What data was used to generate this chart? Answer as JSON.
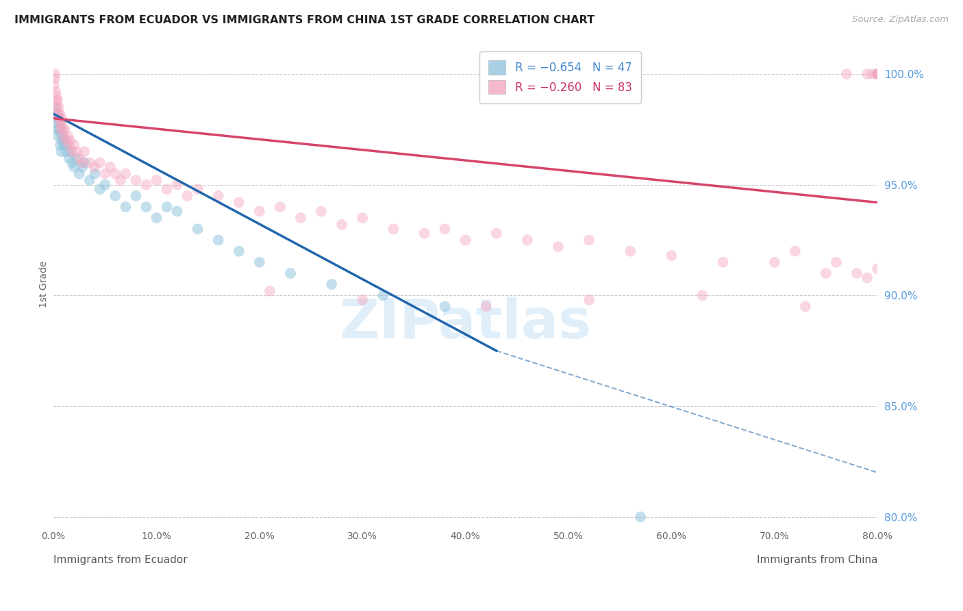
{
  "title": "IMMIGRANTS FROM ECUADOR VS IMMIGRANTS FROM CHINA 1ST GRADE CORRELATION CHART",
  "source": "Source: ZipAtlas.com",
  "ylabel": "1st Grade",
  "watermark": "ZIPatlas",
  "legend_blue_text": "R = −0.654   N = 47",
  "legend_pink_text": "R = −0.260   N = 83",
  "ecuador_color": "#92c5de",
  "china_color": "#f4a6c0",
  "ecuador_trend_color": "#2166ac",
  "china_trend_color": "#d6456a",
  "xlim": [
    0.0,
    80.0
  ],
  "ylim": [
    79.5,
    101.5
  ],
  "grid_color": "#cccccc",
  "right_yticks": [
    80.0,
    85.0,
    90.0,
    95.0,
    100.0
  ],
  "bottom_left_label": "Immigrants from Ecuador",
  "bottom_right_label": "Immigrants from China",
  "ecuador_x": [
    0.1,
    0.15,
    0.2,
    0.25,
    0.3,
    0.35,
    0.4,
    0.45,
    0.5,
    0.6,
    0.65,
    0.7,
    0.75,
    0.8,
    0.9,
    1.0,
    1.1,
    1.2,
    1.3,
    1.5,
    1.6,
    1.8,
    2.0,
    2.2,
    2.5,
    2.8,
    3.0,
    3.5,
    4.0,
    4.5,
    5.0,
    6.0,
    7.0,
    8.0,
    9.0,
    10.0,
    11.0,
    12.0,
    14.0,
    16.0,
    18.0,
    20.0,
    23.0,
    27.0,
    32.0,
    38.0,
    57.0
  ],
  "ecuador_y": [
    98.2,
    98.5,
    98.0,
    97.8,
    98.2,
    97.5,
    98.0,
    97.2,
    97.5,
    97.8,
    96.8,
    97.5,
    96.5,
    97.2,
    97.0,
    96.8,
    97.0,
    96.5,
    96.8,
    96.2,
    96.5,
    96.0,
    95.8,
    96.2,
    95.5,
    95.8,
    96.0,
    95.2,
    95.5,
    94.8,
    95.0,
    94.5,
    94.0,
    94.5,
    94.0,
    93.5,
    94.0,
    93.8,
    93.0,
    92.5,
    92.0,
    91.5,
    91.0,
    90.5,
    90.0,
    89.5,
    80.0
  ],
  "china_x": [
    0.05,
    0.1,
    0.15,
    0.2,
    0.25,
    0.3,
    0.35,
    0.4,
    0.45,
    0.5,
    0.55,
    0.6,
    0.65,
    0.7,
    0.75,
    0.8,
    0.9,
    1.0,
    1.1,
    1.2,
    1.4,
    1.5,
    1.6,
    1.8,
    2.0,
    2.2,
    2.5,
    2.8,
    3.0,
    3.5,
    4.0,
    4.5,
    5.0,
    5.5,
    6.0,
    6.5,
    7.0,
    8.0,
    9.0,
    10.0,
    11.0,
    12.0,
    13.0,
    14.0,
    16.0,
    18.0,
    20.0,
    22.0,
    24.0,
    26.0,
    28.0,
    30.0,
    33.0,
    36.0,
    38.0,
    40.0,
    43.0,
    46.0,
    49.0,
    52.0,
    56.0,
    60.0,
    65.0,
    70.0,
    72.0,
    75.0,
    76.0,
    78.0,
    79.0,
    80.0,
    21.0,
    30.0,
    42.0,
    52.0,
    63.0,
    73.0,
    77.0,
    79.0,
    79.5,
    80.0,
    80.0,
    80.0,
    80.0
  ],
  "china_y": [
    99.5,
    99.8,
    100.0,
    99.2,
    98.8,
    99.0,
    98.5,
    98.8,
    98.2,
    98.5,
    98.0,
    98.2,
    97.8,
    97.5,
    97.8,
    98.0,
    97.5,
    97.2,
    97.5,
    97.0,
    97.2,
    96.8,
    97.0,
    96.5,
    96.8,
    96.5,
    96.2,
    96.0,
    96.5,
    96.0,
    95.8,
    96.0,
    95.5,
    95.8,
    95.5,
    95.2,
    95.5,
    95.2,
    95.0,
    95.2,
    94.8,
    95.0,
    94.5,
    94.8,
    94.5,
    94.2,
    93.8,
    94.0,
    93.5,
    93.8,
    93.2,
    93.5,
    93.0,
    92.8,
    93.0,
    92.5,
    92.8,
    92.5,
    92.2,
    92.5,
    92.0,
    91.8,
    91.5,
    91.5,
    92.0,
    91.0,
    91.5,
    91.0,
    90.8,
    91.2,
    90.2,
    89.8,
    89.5,
    89.8,
    90.0,
    89.5,
    100.0,
    100.0,
    100.0,
    100.0,
    100.0,
    100.0,
    100.0
  ]
}
